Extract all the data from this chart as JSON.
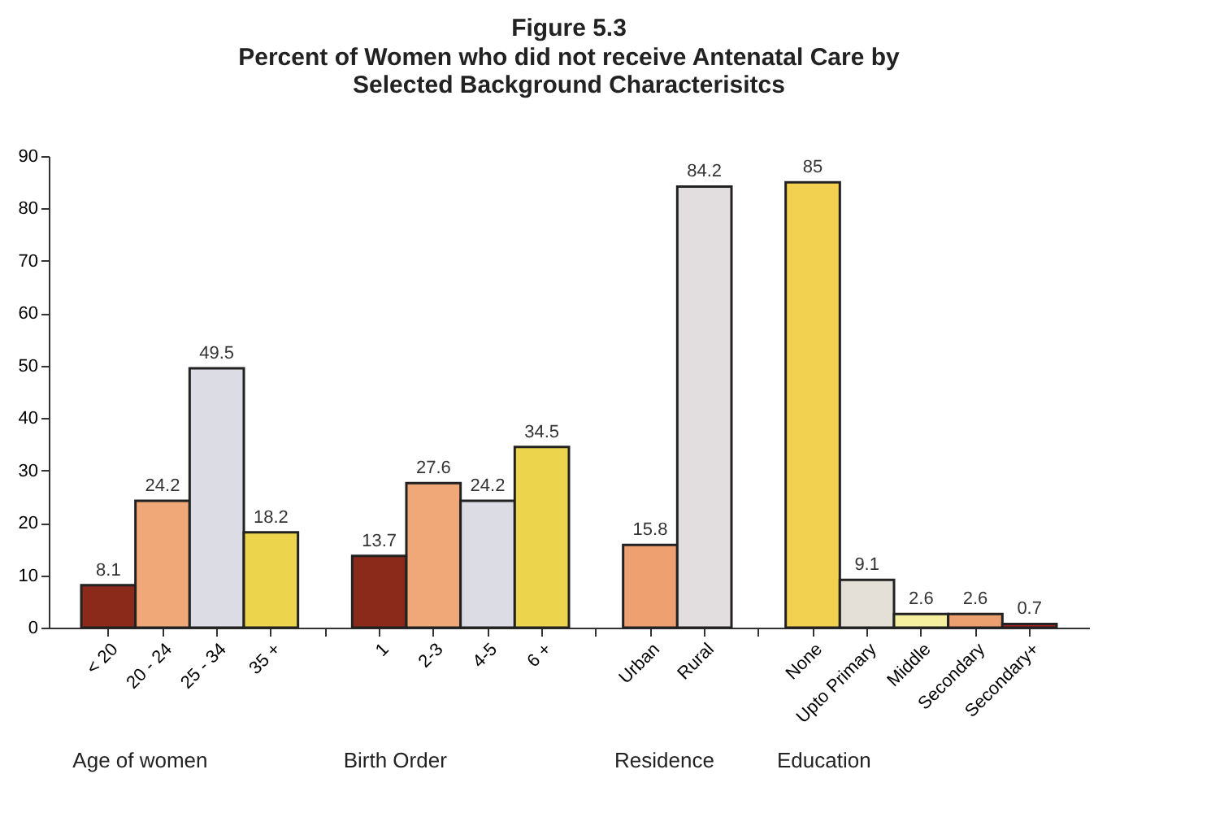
{
  "chart_data": {
    "type": "bar",
    "title": "Figure 5.3",
    "subtitle": "Percent of Women who did not receive Antenatal Care by Selected Background Characterisitcs",
    "categories": [
      "< 20",
      "20 - 24",
      "25 - 34",
      "35 +",
      null,
      "1",
      "2-3",
      "4-5",
      "6 +",
      null,
      "Urban",
      "Rural",
      null,
      "None",
      "Upto Primary",
      "Middle",
      "Secondary",
      "Secondary+"
    ],
    "values": [
      8.1,
      24.2,
      49.5,
      18.2,
      null,
      13.7,
      27.6,
      24.2,
      34.5,
      null,
      15.8,
      84.2,
      null,
      85,
      9.1,
      2.6,
      2.6,
      0.7
    ],
    "colors": [
      "#8b2a1a",
      "#f0a878",
      "#dcdce4",
      "#ecd44c",
      "#ffffff",
      "#8b2a1a",
      "#f0a878",
      "#dcdce4",
      "#ecd44c",
      "#ffffff",
      "#eea070",
      "#e2dee0",
      "#ffffff",
      "#f2d050",
      "#e4e0d8",
      "#f4f0a0",
      "#eca070",
      "#a82020"
    ],
    "annotations": [
      "Age of women",
      "Birth Order",
      "Residence",
      "Education"
    ],
    "ylim": [
      0,
      90
    ],
    "yticks": [
      0,
      10,
      20,
      30,
      40,
      50,
      60,
      70,
      80,
      90
    ],
    "data_labels": true,
    "grid": false
  }
}
